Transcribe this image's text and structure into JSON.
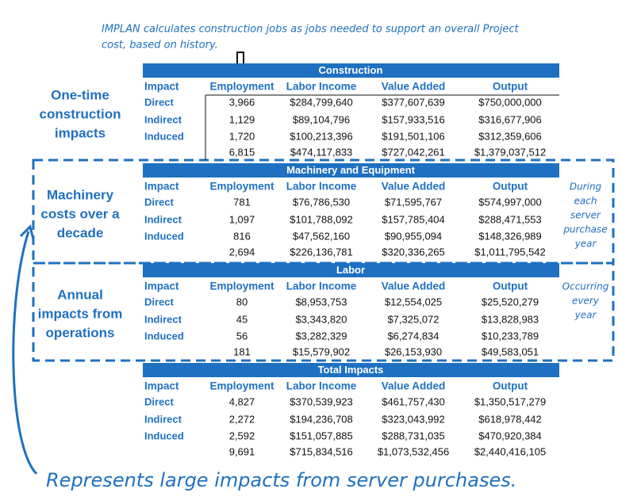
{
  "note": [
    "IMPLAN calculates construction jobs as jobs needed to support an overall Project",
    "cost, based on history."
  ],
  "footer": "Represents large impacts from server purchases.",
  "sections": [
    {
      "title": "Construction",
      "side_label": [
        "One-time",
        "construction",
        "impacts"
      ],
      "header": [
        "Impact",
        "Employment",
        "Labor Income",
        "Value Added",
        "Output"
      ],
      "rows": [
        [
          "Direct",
          "3,966",
          "$284,799,640",
          "$377,607,639",
          "$750,000,000"
        ],
        [
          "Indirect",
          "1,129",
          "$89,104,796",
          "$157,933,516",
          "$316,677,906"
        ],
        [
          "Induced",
          "1,720",
          "$100,213,396",
          "$191,501,106",
          "$312,359,606"
        ],
        [
          "6,815",
          "$474,117,833",
          "$727,042,261",
          "$1,379,037,512"
        ]
      ]
    },
    {
      "title": "Machinery and Equipment",
      "side_label": [
        "Machinery",
        "costs over a",
        "decade"
      ],
      "annotation": [
        "During",
        "each",
        "server",
        "purchase",
        "year"
      ],
      "header": [
        "Impact",
        "Employment",
        "Labor Income",
        "Value Added",
        "Output"
      ],
      "rows": [
        [
          "Direct",
          "781",
          "$76,786,530",
          "$71,595,767",
          "$574,997,000"
        ],
        [
          "Indirect",
          "1,097",
          "$101,788,092",
          "$157,785,404",
          "$288,471,553"
        ],
        [
          "Induced",
          "816",
          "$47,562,160",
          "$90,955,094",
          "$148,326,989"
        ],
        [
          "2,694",
          "$226,136,781",
          "$320,336,265",
          "$1,011,795,542"
        ]
      ]
    },
    {
      "title": "Labor",
      "side_label": [
        "Annual",
        "impacts from",
        "operations"
      ],
      "annotation": [
        "Occurring",
        "every",
        "year"
      ],
      "header": [
        "Impact",
        "Employment",
        "Labor Income",
        "Value Added",
        "Output"
      ],
      "rows": [
        [
          "Direct",
          "80",
          "$8,953,753",
          "$12,554,025",
          "$25,520,279"
        ],
        [
          "Indirect",
          "45",
          "$3,343,820",
          "$7,325,072",
          "$13,828,983"
        ],
        [
          "Induced",
          "56",
          "$3,282,329",
          "$6,274,834",
          "$10,233,789"
        ],
        [
          "181",
          "$15,579,902",
          "$26,153,930",
          "$49,583,051"
        ]
      ]
    },
    {
      "title": "Total Impacts",
      "header": [
        "Impact",
        "Employment",
        "Labor Income",
        "Value Added",
        "Output"
      ],
      "rows": [
        [
          "Direct",
          "4,827",
          "$370,539,923",
          "$461,757,430",
          "$1,350,517,279"
        ],
        [
          "Indirect",
          "2,272",
          "$194,236,708",
          "$323,043,992",
          "$618,978,442"
        ],
        [
          "Induced",
          "2,592",
          "$151,057,885",
          "$288,731,035",
          "$470,920,384"
        ],
        [
          "9,691",
          "$715,834,516",
          "$1,073,532,456",
          "$2,440,416,105"
        ]
      ]
    }
  ]
}
